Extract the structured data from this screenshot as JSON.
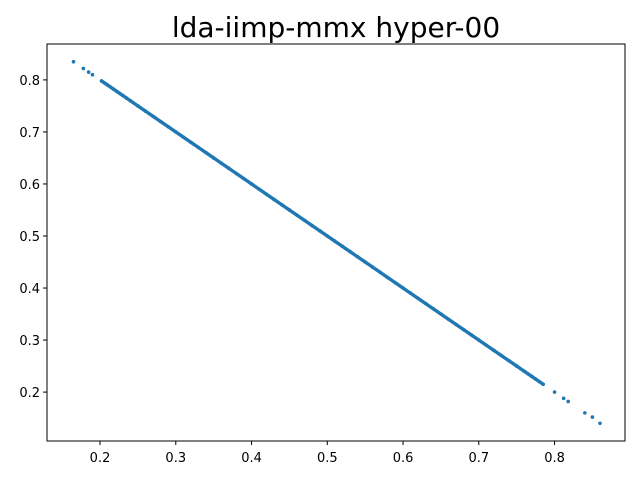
{
  "chart_data": {
    "type": "scatter",
    "title": "lda-iimp-mmx hyper-00",
    "xlabel": "",
    "ylabel": "",
    "xlim": [
      0.13,
      0.893
    ],
    "ylim": [
      0.106,
      0.869
    ],
    "xticks": [
      0.2,
      0.3,
      0.4,
      0.5,
      0.6,
      0.7,
      0.8
    ],
    "yticks": [
      0.2,
      0.3,
      0.4,
      0.5,
      0.6,
      0.7,
      0.8
    ],
    "xtick_labels": [
      "0.2",
      "0.3",
      "0.4",
      "0.5",
      "0.6",
      "0.7",
      "0.8"
    ],
    "ytick_labels": [
      "0.2",
      "0.3",
      "0.4",
      "0.5",
      "0.6",
      "0.7",
      "0.8"
    ],
    "grid": false,
    "legend": "none",
    "color": "#1f77b4",
    "series": [
      {
        "marker_color": "#1f77b4",
        "x": [
          0.165,
          0.178,
          0.185,
          0.19,
          0.202,
          0.206,
          0.21,
          0.214,
          0.218,
          0.222,
          0.226,
          0.23,
          0.235,
          0.24,
          0.25,
          0.26,
          0.27,
          0.28,
          0.29,
          0.3,
          0.31,
          0.32,
          0.33,
          0.34,
          0.35,
          0.36,
          0.37,
          0.38,
          0.39,
          0.4,
          0.41,
          0.42,
          0.43,
          0.44,
          0.45,
          0.46,
          0.47,
          0.48,
          0.49,
          0.5,
          0.51,
          0.52,
          0.53,
          0.54,
          0.55,
          0.56,
          0.57,
          0.58,
          0.59,
          0.6,
          0.61,
          0.62,
          0.63,
          0.64,
          0.65,
          0.66,
          0.67,
          0.68,
          0.69,
          0.7,
          0.71,
          0.72,
          0.73,
          0.74,
          0.75,
          0.76,
          0.765,
          0.77,
          0.775,
          0.78,
          0.785,
          0.8,
          0.812,
          0.818,
          0.84,
          0.85,
          0.86
        ],
        "y": [
          0.835,
          0.822,
          0.815,
          0.81,
          0.798,
          0.794,
          0.79,
          0.786,
          0.782,
          0.778,
          0.774,
          0.77,
          0.765,
          0.76,
          0.75,
          0.74,
          0.73,
          0.72,
          0.71,
          0.7,
          0.69,
          0.68,
          0.67,
          0.66,
          0.65,
          0.64,
          0.63,
          0.62,
          0.61,
          0.6,
          0.59,
          0.58,
          0.57,
          0.56,
          0.55,
          0.54,
          0.53,
          0.52,
          0.51,
          0.5,
          0.49,
          0.48,
          0.47,
          0.46,
          0.45,
          0.44,
          0.43,
          0.42,
          0.41,
          0.4,
          0.39,
          0.38,
          0.37,
          0.36,
          0.35,
          0.34,
          0.33,
          0.32,
          0.31,
          0.3,
          0.29,
          0.28,
          0.27,
          0.26,
          0.25,
          0.24,
          0.235,
          0.23,
          0.225,
          0.22,
          0.215,
          0.2,
          0.188,
          0.182,
          0.16,
          0.152,
          0.14
        ]
      }
    ]
  }
}
